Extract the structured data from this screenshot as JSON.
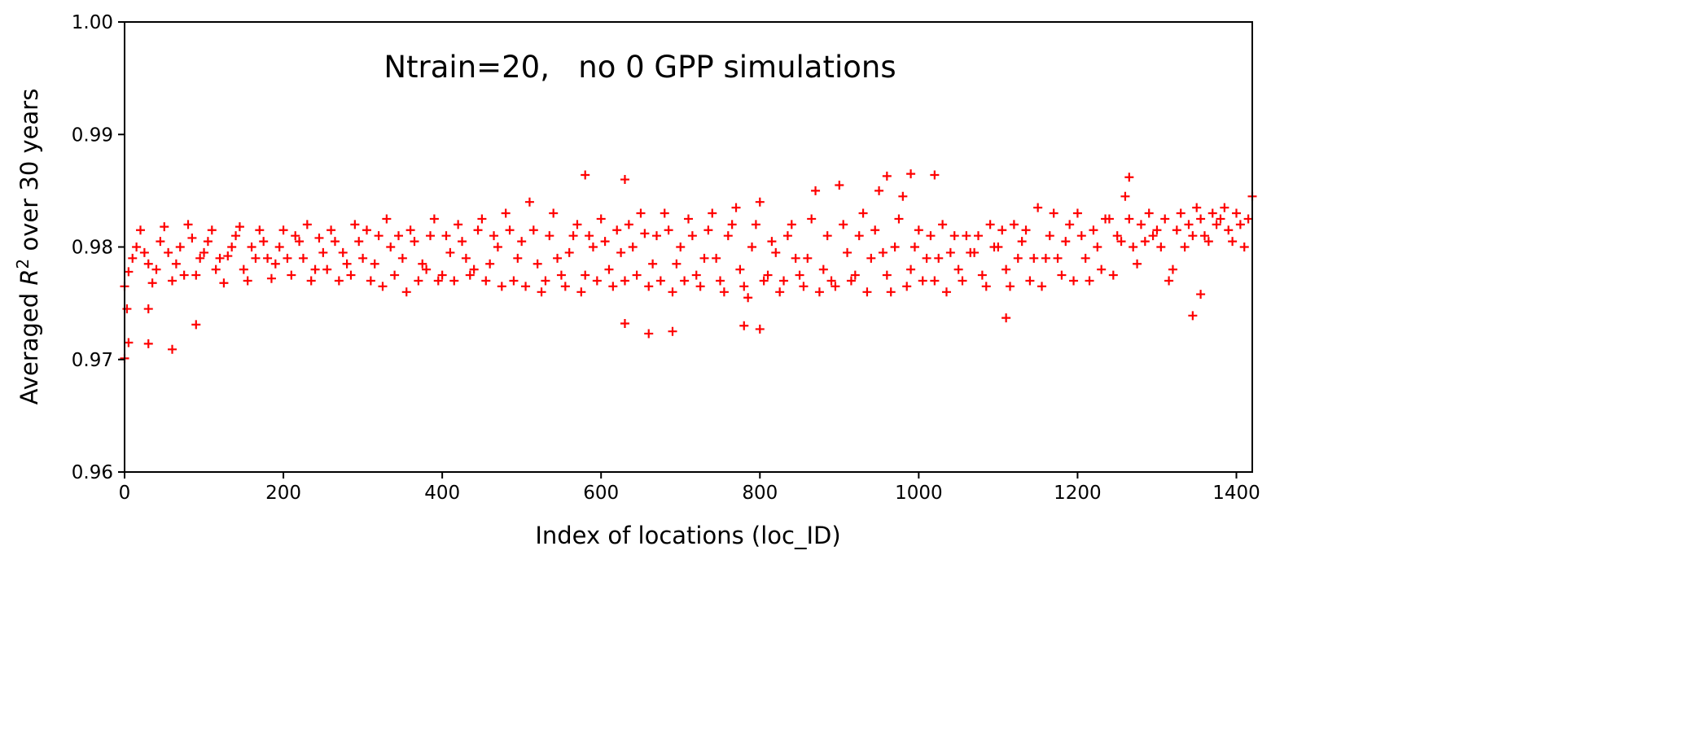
{
  "chart_data": {
    "type": "scatter",
    "title": "Ntrain=20,   no 0 GPP simulations",
    "xlabel": "Index of locations (loc_ID)",
    "ylabel_prefix": "Averaged ",
    "ylabel_r": "R",
    "ylabel_sup": "2",
    "ylabel_suffix": " over 30 years",
    "xlim": [
      0,
      1420
    ],
    "ylim": [
      0.96,
      1.0
    ],
    "xticks": [
      0,
      200,
      400,
      600,
      800,
      1000,
      1200,
      1400
    ],
    "xtick_labels": [
      "0",
      "200",
      "400",
      "600",
      "800",
      "1000",
      "1200",
      "1400"
    ],
    "yticks": [
      0.96,
      0.97,
      0.98,
      0.99,
      1.0
    ],
    "ytick_labels": [
      "0.96",
      "0.97",
      "0.98",
      "0.99",
      "1.00"
    ],
    "marker": "+",
    "color": "#ff0000",
    "grid": false,
    "series": [
      {
        "name": "R2",
        "points": [
          [
            0,
            0.9765
          ],
          [
            10,
            0.979
          ],
          [
            20,
            0.9815
          ],
          [
            30,
            0.9785
          ],
          [
            40,
            0.978
          ],
          [
            50,
            0.9818
          ],
          [
            60,
            0.977
          ],
          [
            70,
            0.98
          ],
          [
            80,
            0.982
          ],
          [
            90,
            0.9775
          ],
          [
            100,
            0.9795
          ],
          [
            110,
            0.9815
          ],
          [
            120,
            0.979
          ],
          [
            130,
            0.9792
          ],
          [
            140,
            0.981
          ],
          [
            150,
            0.978
          ],
          [
            160,
            0.98
          ],
          [
            170,
            0.9815
          ],
          [
            180,
            0.979
          ],
          [
            190,
            0.9785
          ],
          [
            200,
            0.9815
          ],
          [
            210,
            0.9775
          ],
          [
            220,
            0.9805
          ],
          [
            230,
            0.982
          ],
          [
            240,
            0.978
          ],
          [
            250,
            0.9795
          ],
          [
            260,
            0.9815
          ],
          [
            270,
            0.977
          ],
          [
            280,
            0.9785
          ],
          [
            290,
            0.982
          ],
          [
            300,
            0.979
          ],
          [
            310,
            0.977
          ],
          [
            320,
            0.981
          ],
          [
            330,
            0.9825
          ],
          [
            340,
            0.9775
          ],
          [
            350,
            0.979
          ],
          [
            360,
            0.9815
          ],
          [
            370,
            0.977
          ],
          [
            380,
            0.978
          ],
          [
            390,
            0.9825
          ],
          [
            400,
            0.9775
          ],
          [
            410,
            0.9795
          ],
          [
            420,
            0.982
          ],
          [
            430,
            0.979
          ],
          [
            440,
            0.978
          ],
          [
            450,
            0.9825
          ],
          [
            460,
            0.9785
          ],
          [
            470,
            0.98
          ],
          [
            480,
            0.983
          ],
          [
            490,
            0.977
          ],
          [
            500,
            0.9805
          ],
          [
            510,
            0.984
          ],
          [
            520,
            0.9785
          ],
          [
            530,
            0.977
          ],
          [
            540,
            0.983
          ],
          [
            550,
            0.9775
          ],
          [
            560,
            0.9795
          ],
          [
            570,
            0.982
          ],
          [
            580,
            0.9775
          ],
          [
            590,
            0.98
          ],
          [
            600,
            0.9825
          ],
          [
            610,
            0.978
          ],
          [
            620,
            0.9815
          ],
          [
            630,
            0.977
          ],
          [
            640,
            0.98
          ],
          [
            650,
            0.983
          ],
          [
            660,
            0.9765
          ],
          [
            670,
            0.981
          ],
          [
            680,
            0.983
          ],
          [
            690,
            0.976
          ],
          [
            700,
            0.98
          ],
          [
            710,
            0.9825
          ],
          [
            720,
            0.9775
          ],
          [
            730,
            0.979
          ],
          [
            740,
            0.983
          ],
          [
            750,
            0.977
          ],
          [
            760,
            0.981
          ],
          [
            770,
            0.9835
          ],
          [
            780,
            0.9765
          ],
          [
            790,
            0.98
          ],
          [
            800,
            0.984
          ],
          [
            810,
            0.9775
          ],
          [
            820,
            0.9795
          ],
          [
            830,
            0.977
          ],
          [
            840,
            0.982
          ],
          [
            850,
            0.9775
          ],
          [
            860,
            0.979
          ],
          [
            870,
            0.985
          ],
          [
            880,
            0.978
          ],
          [
            890,
            0.977
          ],
          [
            900,
            0.9855
          ],
          [
            910,
            0.9795
          ],
          [
            920,
            0.9775
          ],
          [
            930,
            0.983
          ],
          [
            940,
            0.979
          ],
          [
            950,
            0.985
          ],
          [
            960,
            0.9775
          ],
          [
            970,
            0.98
          ],
          [
            980,
            0.9845
          ],
          [
            990,
            0.978
          ],
          [
            1000,
            0.9815
          ],
          [
            1010,
            0.979
          ],
          [
            1020,
            0.977
          ],
          [
            1030,
            0.982
          ],
          [
            1040,
            0.9795
          ],
          [
            1050,
            0.978
          ],
          [
            1060,
            0.981
          ],
          [
            1070,
            0.9795
          ],
          [
            1080,
            0.9775
          ],
          [
            1090,
            0.982
          ],
          [
            1100,
            0.98
          ],
          [
            1110,
            0.978
          ],
          [
            1120,
            0.982
          ],
          [
            1130,
            0.9805
          ],
          [
            1140,
            0.977
          ],
          [
            1150,
            0.9835
          ],
          [
            1160,
            0.979
          ],
          [
            1170,
            0.983
          ],
          [
            1180,
            0.9775
          ],
          [
            1190,
            0.982
          ],
          [
            1200,
            0.983
          ],
          [
            1210,
            0.979
          ],
          [
            1220,
            0.9815
          ],
          [
            1230,
            0.978
          ],
          [
            1240,
            0.9825
          ],
          [
            1250,
            0.981
          ],
          [
            1260,
            0.9845
          ],
          [
            1270,
            0.98
          ],
          [
            1280,
            0.982
          ],
          [
            1290,
            0.983
          ],
          [
            1300,
            0.9815
          ],
          [
            1310,
            0.9825
          ],
          [
            1320,
            0.978
          ],
          [
            1330,
            0.983
          ],
          [
            1340,
            0.982
          ],
          [
            1350,
            0.9835
          ],
          [
            1360,
            0.981
          ],
          [
            1370,
            0.983
          ],
          [
            1380,
            0.9825
          ],
          [
            1390,
            0.9815
          ],
          [
            1400,
            0.983
          ],
          [
            1410,
            0.98
          ],
          [
            1420,
            0.9845
          ],
          [
            5,
            0.9778
          ],
          [
            15,
            0.98
          ],
          [
            25,
            0.9795
          ],
          [
            35,
            0.9768
          ],
          [
            45,
            0.9805
          ],
          [
            55,
            0.9795
          ],
          [
            65,
            0.9785
          ],
          [
            75,
            0.9775
          ],
          [
            85,
            0.9808
          ],
          [
            95,
            0.979
          ],
          [
            105,
            0.9805
          ],
          [
            115,
            0.978
          ],
          [
            125,
            0.9768
          ],
          [
            135,
            0.98
          ],
          [
            145,
            0.9818
          ],
          [
            155,
            0.977
          ],
          [
            165,
            0.979
          ],
          [
            175,
            0.9805
          ],
          [
            185,
            0.9772
          ],
          [
            195,
            0.98
          ],
          [
            205,
            0.979
          ],
          [
            215,
            0.981
          ],
          [
            225,
            0.979
          ],
          [
            235,
            0.977
          ],
          [
            245,
            0.9808
          ],
          [
            255,
            0.978
          ],
          [
            265,
            0.9805
          ],
          [
            275,
            0.9795
          ],
          [
            285,
            0.9775
          ],
          [
            295,
            0.9805
          ],
          [
            305,
            0.9815
          ],
          [
            315,
            0.9785
          ],
          [
            325,
            0.9765
          ],
          [
            335,
            0.98
          ],
          [
            345,
            0.981
          ],
          [
            355,
            0.976
          ],
          [
            365,
            0.9805
          ],
          [
            375,
            0.9785
          ],
          [
            385,
            0.981
          ],
          [
            395,
            0.977
          ],
          [
            405,
            0.981
          ],
          [
            415,
            0.977
          ],
          [
            425,
            0.9805
          ],
          [
            435,
            0.9775
          ],
          [
            445,
            0.9815
          ],
          [
            455,
            0.977
          ],
          [
            465,
            0.981
          ],
          [
            475,
            0.9765
          ],
          [
            485,
            0.9815
          ],
          [
            495,
            0.979
          ],
          [
            505,
            0.9765
          ],
          [
            515,
            0.9815
          ],
          [
            525,
            0.976
          ],
          [
            535,
            0.981
          ],
          [
            545,
            0.979
          ],
          [
            555,
            0.9765
          ],
          [
            565,
            0.981
          ],
          [
            575,
            0.976
          ],
          [
            585,
            0.981
          ],
          [
            595,
            0.977
          ],
          [
            605,
            0.9805
          ],
          [
            615,
            0.9765
          ],
          [
            625,
            0.9795
          ],
          [
            635,
            0.982
          ],
          [
            645,
            0.9775
          ],
          [
            655,
            0.9812
          ],
          [
            665,
            0.9785
          ],
          [
            675,
            0.977
          ],
          [
            685,
            0.9815
          ],
          [
            695,
            0.9785
          ],
          [
            705,
            0.977
          ],
          [
            715,
            0.981
          ],
          [
            725,
            0.9765
          ],
          [
            735,
            0.9815
          ],
          [
            745,
            0.979
          ],
          [
            755,
            0.976
          ],
          [
            765,
            0.982
          ],
          [
            775,
            0.978
          ],
          [
            785,
            0.9755
          ],
          [
            795,
            0.982
          ],
          [
            805,
            0.977
          ],
          [
            815,
            0.9805
          ],
          [
            825,
            0.976
          ],
          [
            835,
            0.981
          ],
          [
            845,
            0.979
          ],
          [
            855,
            0.9765
          ],
          [
            865,
            0.9825
          ],
          [
            875,
            0.976
          ],
          [
            885,
            0.981
          ],
          [
            895,
            0.9765
          ],
          [
            905,
            0.982
          ],
          [
            915,
            0.977
          ],
          [
            925,
            0.981
          ],
          [
            935,
            0.976
          ],
          [
            945,
            0.9815
          ],
          [
            955,
            0.9795
          ],
          [
            965,
            0.976
          ],
          [
            975,
            0.9825
          ],
          [
            985,
            0.9765
          ],
          [
            995,
            0.98
          ],
          [
            1005,
            0.977
          ],
          [
            1015,
            0.981
          ],
          [
            1025,
            0.979
          ],
          [
            1035,
            0.976
          ],
          [
            1045,
            0.981
          ],
          [
            1055,
            0.977
          ],
          [
            1065,
            0.9795
          ],
          [
            1075,
            0.981
          ],
          [
            1085,
            0.9765
          ],
          [
            1095,
            0.98
          ],
          [
            1105,
            0.9815
          ],
          [
            1115,
            0.9765
          ],
          [
            1125,
            0.979
          ],
          [
            1135,
            0.9815
          ],
          [
            1145,
            0.979
          ],
          [
            1155,
            0.9765
          ],
          [
            1165,
            0.981
          ],
          [
            1175,
            0.979
          ],
          [
            1185,
            0.9805
          ],
          [
            1195,
            0.977
          ],
          [
            1205,
            0.981
          ],
          [
            1215,
            0.977
          ],
          [
            1225,
            0.98
          ],
          [
            1235,
            0.9825
          ],
          [
            1245,
            0.9775
          ],
          [
            1255,
            0.9805
          ],
          [
            1265,
            0.9825
          ],
          [
            1275,
            0.9785
          ],
          [
            1285,
            0.9805
          ],
          [
            1295,
            0.981
          ],
          [
            1305,
            0.98
          ],
          [
            1315,
            0.977
          ],
          [
            1325,
            0.9815
          ],
          [
            1335,
            0.98
          ],
          [
            1345,
            0.981
          ],
          [
            1355,
            0.9825
          ],
          [
            1365,
            0.9805
          ],
          [
            1375,
            0.982
          ],
          [
            1385,
            0.9835
          ],
          [
            1395,
            0.9805
          ],
          [
            1405,
            0.982
          ],
          [
            1415,
            0.9825
          ],
          [
            0,
            0.9701
          ],
          [
            3,
            0.9745
          ],
          [
            5,
            0.9715
          ],
          [
            30,
            0.9714
          ],
          [
            30,
            0.9745
          ],
          [
            60,
            0.9709
          ],
          [
            90,
            0.9731
          ],
          [
            580,
            0.9864
          ],
          [
            630,
            0.986
          ],
          [
            630,
            0.9732
          ],
          [
            660,
            0.9723
          ],
          [
            690,
            0.9725
          ],
          [
            780,
            0.973
          ],
          [
            800,
            0.9727
          ],
          [
            960,
            0.9863
          ],
          [
            990,
            0.9865
          ],
          [
            1020,
            0.9864
          ],
          [
            1110,
            0.9737
          ],
          [
            1265,
            0.9862
          ],
          [
            1345,
            0.9739
          ],
          [
            1355,
            0.9758
          ]
        ]
      }
    ]
  }
}
